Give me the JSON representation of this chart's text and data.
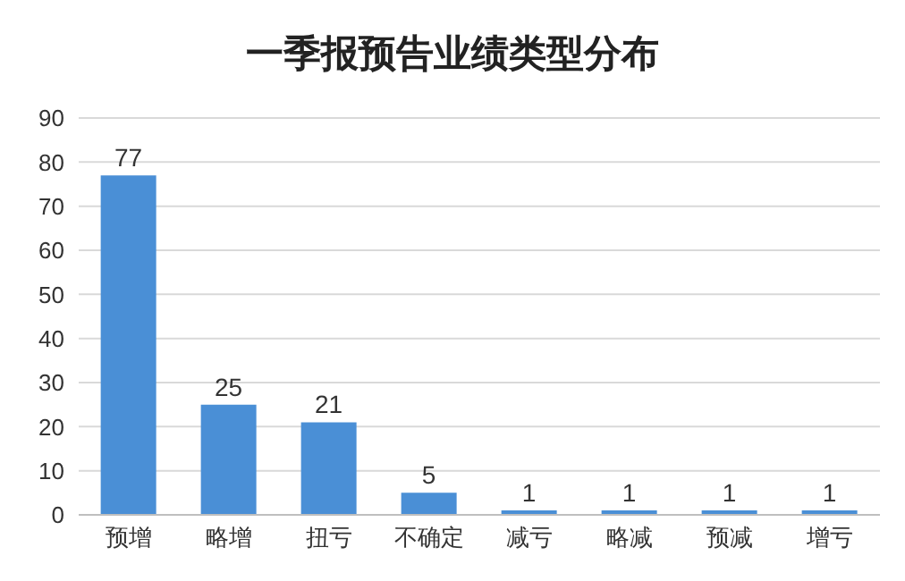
{
  "chart_data": {
    "type": "bar",
    "title": "一季报预告业绩类型分布",
    "categories": [
      "预增",
      "略增",
      "扭亏",
      "不确定",
      "减亏",
      "略减",
      "预减",
      "增亏"
    ],
    "values": [
      77,
      25,
      21,
      5,
      1,
      1,
      1,
      1
    ],
    "color": "#4a8fd6",
    "ylim": [
      0,
      90
    ],
    "yticks": [
      0,
      10,
      20,
      30,
      40,
      50,
      60,
      70,
      80,
      90
    ],
    "grid": "y",
    "data_labels": true
  }
}
